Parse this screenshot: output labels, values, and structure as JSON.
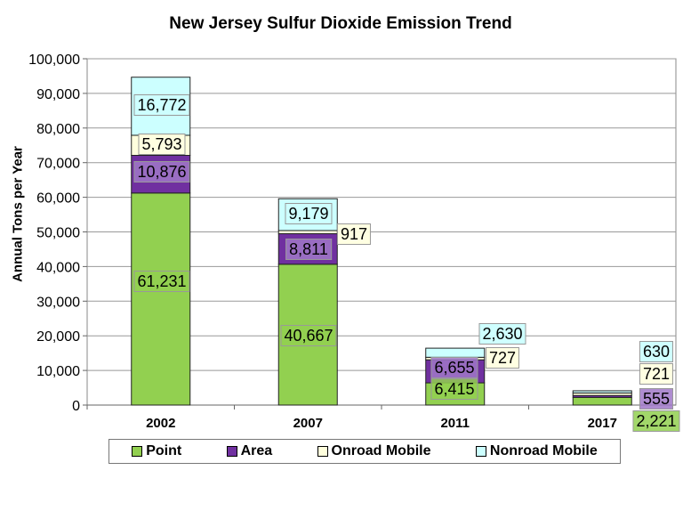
{
  "chart_data": {
    "type": "bar",
    "stacked": true,
    "title": "New Jersey Sulfur Dioxide Emission Trend",
    "xlabel": "",
    "ylabel": "Annual Tons per Year",
    "ylim": [
      0,
      100000
    ],
    "yticks": [
      "0",
      "10,000",
      "20,000",
      "30,000",
      "40,000",
      "50,000",
      "60,000",
      "70,000",
      "80,000",
      "90,000",
      "100,000"
    ],
    "grid": true,
    "legend_position": "bottom",
    "categories": [
      "2002",
      "2007",
      "2011",
      "2017"
    ],
    "series": [
      {
        "name": "Point",
        "color": "#92d050",
        "values": [
          61231,
          40667,
          6415,
          2221
        ],
        "labels": [
          "61,231",
          "40,667",
          "6,415",
          "2,221"
        ]
      },
      {
        "name": "Area",
        "color": "#7030a0",
        "values": [
          10876,
          8811,
          6655,
          555
        ],
        "labels": [
          "10,876",
          "8,811",
          "6,655",
          "555"
        ]
      },
      {
        "name": "Onroad Mobile",
        "color": "#ffffdd",
        "values": [
          5793,
          917,
          727,
          721
        ],
        "labels": [
          "5,793",
          "917",
          "727",
          "721"
        ]
      },
      {
        "name": "Nonroad Mobile",
        "color": "#ccffff",
        "values": [
          16772,
          9179,
          2630,
          630
        ],
        "labels": [
          "16,772",
          "9,179",
          "2,630",
          "630"
        ]
      }
    ]
  }
}
